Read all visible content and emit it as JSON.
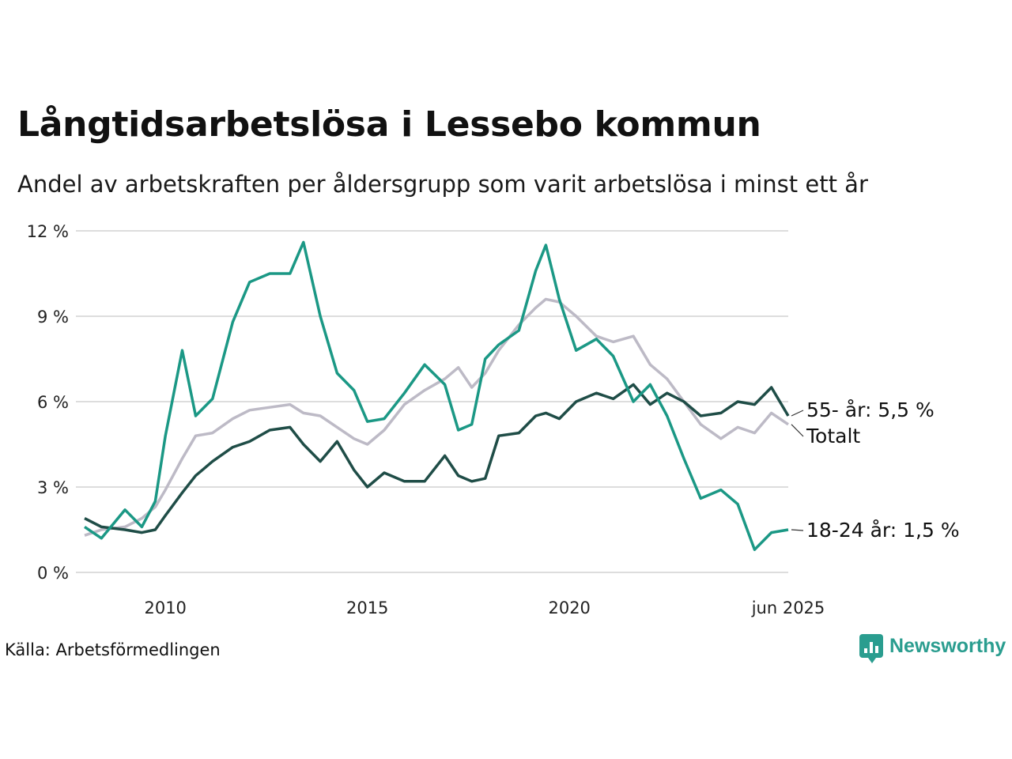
{
  "header": {
    "title": "Långtidsarbetslösa i Lessebo kommun",
    "subtitle": "Andel av arbetskraften per åldersgrupp som varit arbetslösa i minst ett år"
  },
  "footer": {
    "source": "Källa: Arbetsförmedlingen",
    "logo_text": "Newsworthy"
  },
  "colors": {
    "total": "#bdbac6",
    "age_55": "#1f4d47",
    "age_18_24": "#1b9885",
    "grid": "#dddddd",
    "brand": "#2a9d8f"
  },
  "icons": {
    "logo": "newsworthy-logo-icon"
  },
  "chart_data": {
    "type": "line",
    "title": "Långtidsarbetslösa i Lessebo kommun",
    "subtitle": "Andel av arbetskraften per åldersgrupp som varit arbetslösa i minst ett år",
    "y_unit": "%",
    "ylim": [
      0,
      12
    ],
    "yticks": [
      0,
      3,
      6,
      9,
      12
    ],
    "ytick_labels": [
      "0 %",
      "3 %",
      "6 %",
      "9 %",
      "12 %"
    ],
    "xlim": [
      "2008-01",
      "2025-06"
    ],
    "xticks": [
      "2010-01",
      "2015-01",
      "2020-01",
      "2025-06"
    ],
    "xtick_labels": [
      "2010",
      "2015",
      "2020",
      "jun 2025"
    ],
    "grid": true,
    "series": [
      {
        "name": "Totalt",
        "end_label": "Totalt",
        "color": "#bdbac6",
        "points": [
          [
            "2008-01",
            1.3
          ],
          [
            "2008-06",
            1.5
          ],
          [
            "2009-01",
            1.6
          ],
          [
            "2009-06",
            1.9
          ],
          [
            "2009-10",
            2.3
          ],
          [
            "2010-01",
            2.9
          ],
          [
            "2010-06",
            4.0
          ],
          [
            "2010-10",
            4.8
          ],
          [
            "2011-03",
            4.9
          ],
          [
            "2011-09",
            5.4
          ],
          [
            "2012-02",
            5.7
          ],
          [
            "2012-08",
            5.8
          ],
          [
            "2013-02",
            5.9
          ],
          [
            "2013-06",
            5.6
          ],
          [
            "2013-11",
            5.5
          ],
          [
            "2014-04",
            5.1
          ],
          [
            "2014-09",
            4.7
          ],
          [
            "2015-01",
            4.5
          ],
          [
            "2015-06",
            5.0
          ],
          [
            "2015-12",
            5.9
          ],
          [
            "2016-06",
            6.4
          ],
          [
            "2016-12",
            6.8
          ],
          [
            "2017-04",
            7.2
          ],
          [
            "2017-08",
            6.5
          ],
          [
            "2017-12",
            7.0
          ],
          [
            "2018-04",
            7.8
          ],
          [
            "2018-10",
            8.7
          ],
          [
            "2019-03",
            9.3
          ],
          [
            "2019-06",
            9.6
          ],
          [
            "2019-10",
            9.5
          ],
          [
            "2020-03",
            9.0
          ],
          [
            "2020-09",
            8.3
          ],
          [
            "2021-02",
            8.1
          ],
          [
            "2021-08",
            8.3
          ],
          [
            "2022-01",
            7.3
          ],
          [
            "2022-06",
            6.8
          ],
          [
            "2022-11",
            6.0
          ],
          [
            "2023-04",
            5.2
          ],
          [
            "2023-10",
            4.7
          ],
          [
            "2024-03",
            5.1
          ],
          [
            "2024-08",
            4.9
          ],
          [
            "2025-01",
            5.6
          ],
          [
            "2025-06",
            5.2
          ]
        ]
      },
      {
        "name": "55- år",
        "end_label": "55- år: 5,5 %",
        "color": "#1f4d47",
        "points": [
          [
            "2008-01",
            1.9
          ],
          [
            "2008-06",
            1.6
          ],
          [
            "2009-01",
            1.5
          ],
          [
            "2009-06",
            1.4
          ],
          [
            "2009-10",
            1.5
          ],
          [
            "2010-01",
            2.0
          ],
          [
            "2010-06",
            2.8
          ],
          [
            "2010-10",
            3.4
          ],
          [
            "2011-03",
            3.9
          ],
          [
            "2011-09",
            4.4
          ],
          [
            "2012-02",
            4.6
          ],
          [
            "2012-08",
            5.0
          ],
          [
            "2013-02",
            5.1
          ],
          [
            "2013-06",
            4.5
          ],
          [
            "2013-11",
            3.9
          ],
          [
            "2014-04",
            4.6
          ],
          [
            "2014-09",
            3.6
          ],
          [
            "2015-01",
            3.0
          ],
          [
            "2015-06",
            3.5
          ],
          [
            "2015-12",
            3.2
          ],
          [
            "2016-06",
            3.2
          ],
          [
            "2016-12",
            4.1
          ],
          [
            "2017-04",
            3.4
          ],
          [
            "2017-08",
            3.2
          ],
          [
            "2017-12",
            3.3
          ],
          [
            "2018-04",
            4.8
          ],
          [
            "2018-10",
            4.9
          ],
          [
            "2019-03",
            5.5
          ],
          [
            "2019-06",
            5.6
          ],
          [
            "2019-10",
            5.4
          ],
          [
            "2020-03",
            6.0
          ],
          [
            "2020-09",
            6.3
          ],
          [
            "2021-02",
            6.1
          ],
          [
            "2021-08",
            6.6
          ],
          [
            "2022-01",
            5.9
          ],
          [
            "2022-06",
            6.3
          ],
          [
            "2022-11",
            6.0
          ],
          [
            "2023-04",
            5.5
          ],
          [
            "2023-10",
            5.6
          ],
          [
            "2024-03",
            6.0
          ],
          [
            "2024-08",
            5.9
          ],
          [
            "2025-01",
            6.5
          ],
          [
            "2025-06",
            5.5
          ]
        ]
      },
      {
        "name": "18-24 år",
        "end_label": "18-24 år: 1,5 %",
        "color": "#1b9885",
        "points": [
          [
            "2008-01",
            1.6
          ],
          [
            "2008-06",
            1.2
          ],
          [
            "2009-01",
            2.2
          ],
          [
            "2009-06",
            1.6
          ],
          [
            "2009-10",
            2.5
          ],
          [
            "2010-01",
            4.8
          ],
          [
            "2010-06",
            7.8
          ],
          [
            "2010-10",
            5.5
          ],
          [
            "2011-03",
            6.1
          ],
          [
            "2011-09",
            8.8
          ],
          [
            "2012-02",
            10.2
          ],
          [
            "2012-08",
            10.5
          ],
          [
            "2013-02",
            10.5
          ],
          [
            "2013-06",
            11.6
          ],
          [
            "2013-11",
            9.0
          ],
          [
            "2014-04",
            7.0
          ],
          [
            "2014-09",
            6.4
          ],
          [
            "2015-01",
            5.3
          ],
          [
            "2015-06",
            5.4
          ],
          [
            "2015-12",
            6.3
          ],
          [
            "2016-06",
            7.3
          ],
          [
            "2016-12",
            6.6
          ],
          [
            "2017-04",
            5.0
          ],
          [
            "2017-08",
            5.2
          ],
          [
            "2017-12",
            7.5
          ],
          [
            "2018-04",
            8.0
          ],
          [
            "2018-10",
            8.5
          ],
          [
            "2019-03",
            10.6
          ],
          [
            "2019-06",
            11.5
          ],
          [
            "2019-10",
            9.6
          ],
          [
            "2020-03",
            7.8
          ],
          [
            "2020-09",
            8.2
          ],
          [
            "2021-02",
            7.6
          ],
          [
            "2021-08",
            6.0
          ],
          [
            "2022-01",
            6.6
          ],
          [
            "2022-06",
            5.5
          ],
          [
            "2022-11",
            4.0
          ],
          [
            "2023-04",
            2.6
          ],
          [
            "2023-10",
            2.9
          ],
          [
            "2024-03",
            2.4
          ],
          [
            "2024-08",
            0.8
          ],
          [
            "2025-01",
            1.4
          ],
          [
            "2025-06",
            1.5
          ]
        ]
      }
    ]
  }
}
